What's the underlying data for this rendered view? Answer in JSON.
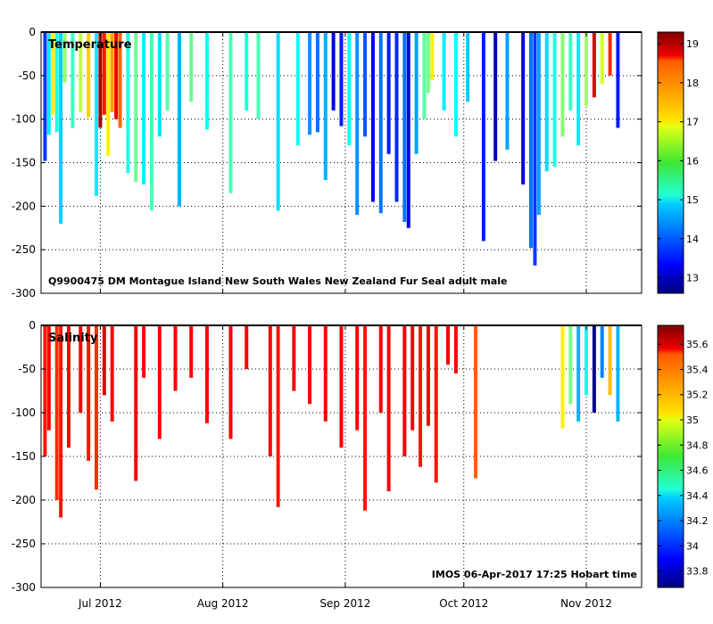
{
  "chart_data": [
    {
      "type": "bar",
      "title": "Temperature",
      "annotation": "Q9900475 DM Montague Island New South Wales New Zealand Fur Seal adult male",
      "xlabel": "",
      "ylabel": "",
      "ylim": [
        -300,
        0
      ],
      "y_ticks": [
        "0",
        "-50",
        "-100",
        "-150",
        "-200",
        "-250",
        "-300"
      ],
      "colorbar": {
        "range": [
          12.6,
          19.3
        ],
        "ticks": [
          "13",
          "14",
          "15",
          "16",
          "17",
          "18",
          "19"
        ]
      },
      "profiles": [
        {
          "day": 1,
          "depth": 148,
          "value": 13.8
        },
        {
          "day": 2,
          "depth": 118,
          "value": 15.0
        },
        {
          "day": 3,
          "depth": 95,
          "value": 16.9
        },
        {
          "day": 4,
          "depth": 115,
          "value": 15.3
        },
        {
          "day": 5,
          "depth": 220,
          "value": 14.8
        },
        {
          "day": 6,
          "depth": 58,
          "value": 16.1
        },
        {
          "day": 8,
          "depth": 110,
          "value": 15.5
        },
        {
          "day": 10,
          "depth": 92,
          "value": 16.4
        },
        {
          "day": 12,
          "depth": 98,
          "value": 17.1
        },
        {
          "day": 14,
          "depth": 188,
          "value": 15.0
        },
        {
          "day": 15,
          "depth": 110,
          "value": 19.0
        },
        {
          "day": 16,
          "depth": 95,
          "value": 18.3
        },
        {
          "day": 17,
          "depth": 142,
          "value": 16.9
        },
        {
          "day": 18,
          "depth": 92,
          "value": 17.4
        },
        {
          "day": 19,
          "depth": 100,
          "value": 18.6
        },
        {
          "day": 20,
          "depth": 110,
          "value": 17.8
        },
        {
          "day": 22,
          "depth": 162,
          "value": 15.3
        },
        {
          "day": 24,
          "depth": 172,
          "value": 15.8
        },
        {
          "day": 26,
          "depth": 175,
          "value": 15.0
        },
        {
          "day": 28,
          "depth": 205,
          "value": 15.6
        },
        {
          "day": 30,
          "depth": 120,
          "value": 14.9
        },
        {
          "day": 32,
          "depth": 90,
          "value": 15.7
        },
        {
          "day": 35,
          "depth": 200,
          "value": 14.6
        },
        {
          "day": 38,
          "depth": 80,
          "value": 15.8
        },
        {
          "day": 42,
          "depth": 112,
          "value": 15.2
        },
        {
          "day": 48,
          "depth": 185,
          "value": 15.6
        },
        {
          "day": 52,
          "depth": 90,
          "value": 15.3
        },
        {
          "day": 55,
          "depth": 100,
          "value": 15.6
        },
        {
          "day": 60,
          "depth": 205,
          "value": 14.9
        },
        {
          "day": 65,
          "depth": 130,
          "value": 15.2
        },
        {
          "day": 68,
          "depth": 118,
          "value": 14.4
        },
        {
          "day": 70,
          "depth": 115,
          "value": 14.2
        },
        {
          "day": 72,
          "depth": 170,
          "value": 14.6
        },
        {
          "day": 74,
          "depth": 90,
          "value": 13.3
        },
        {
          "day": 76,
          "depth": 108,
          "value": 13.6
        },
        {
          "day": 78,
          "depth": 130,
          "value": 15.2
        },
        {
          "day": 80,
          "depth": 210,
          "value": 14.4
        },
        {
          "day": 82,
          "depth": 120,
          "value": 14.0
        },
        {
          "day": 84,
          "depth": 195,
          "value": 13.4
        },
        {
          "day": 86,
          "depth": 208,
          "value": 14.2
        },
        {
          "day": 88,
          "depth": 140,
          "value": 13.6
        },
        {
          "day": 90,
          "depth": 195,
          "value": 13.7
        },
        {
          "day": 92,
          "depth": 218,
          "value": 14.2
        },
        {
          "day": 93,
          "depth": 225,
          "value": 13.2
        },
        {
          "day": 95,
          "depth": 140,
          "value": 14.5
        },
        {
          "day": 97,
          "depth": 100,
          "value": 15.7
        },
        {
          "day": 98,
          "depth": 70,
          "value": 15.9
        },
        {
          "day": 99,
          "depth": 55,
          "value": 16.9
        },
        {
          "day": 102,
          "depth": 90,
          "value": 15.0
        },
        {
          "day": 105,
          "depth": 120,
          "value": 15.1
        },
        {
          "day": 108,
          "depth": 80,
          "value": 14.8
        },
        {
          "day": 112,
          "depth": 240,
          "value": 13.6
        },
        {
          "day": 115,
          "depth": 148,
          "value": 13.0
        },
        {
          "day": 118,
          "depth": 135,
          "value": 14.5
        },
        {
          "day": 122,
          "depth": 175,
          "value": 13.3
        },
        {
          "day": 124,
          "depth": 248,
          "value": 14.2
        },
        {
          "day": 125,
          "depth": 268,
          "value": 13.8
        },
        {
          "day": 126,
          "depth": 210,
          "value": 14.5
        },
        {
          "day": 128,
          "depth": 160,
          "value": 14.9
        },
        {
          "day": 130,
          "depth": 155,
          "value": 15.3
        },
        {
          "day": 132,
          "depth": 120,
          "value": 16.0
        },
        {
          "day": 134,
          "depth": 90,
          "value": 15.5
        },
        {
          "day": 136,
          "depth": 130,
          "value": 15.0
        },
        {
          "day": 138,
          "depth": 85,
          "value": 16.2
        },
        {
          "day": 140,
          "depth": 75,
          "value": 18.7
        },
        {
          "day": 142,
          "depth": 60,
          "value": 16.5
        },
        {
          "day": 144,
          "depth": 50,
          "value": 18.2
        },
        {
          "day": 146,
          "depth": 110,
          "value": 13.6
        }
      ]
    },
    {
      "type": "bar",
      "title": "Salinity",
      "annotation": "IMOS 06-Apr-2017 17:25 Hobart time",
      "xlabel": "",
      "ylabel": "",
      "ylim": [
        -300,
        0
      ],
      "y_ticks": [
        "0",
        "-50",
        "-100",
        "-150",
        "-200",
        "-250",
        "-300"
      ],
      "x_ticks": [
        "Jul 2012",
        "Aug 2012",
        "Sep 2012",
        "Oct 2012",
        "Nov 2012"
      ],
      "colorbar": {
        "range": [
          33.67,
          35.75
        ],
        "ticks": [
          "33.8",
          "34",
          "34.2",
          "34.4",
          "34.6",
          "34.8",
          "35",
          "35.2",
          "35.4",
          "35.6"
        ]
      },
      "profiles": [
        {
          "day": 1,
          "depth": 150,
          "value": 35.45
        },
        {
          "day": 2,
          "depth": 120,
          "value": 35.5
        },
        {
          "day": 4,
          "depth": 200,
          "value": 35.4
        },
        {
          "day": 5,
          "depth": 220,
          "value": 35.45
        },
        {
          "day": 7,
          "depth": 140,
          "value": 35.5
        },
        {
          "day": 10,
          "depth": 100,
          "value": 35.5
        },
        {
          "day": 12,
          "depth": 155,
          "value": 35.45
        },
        {
          "day": 14,
          "depth": 188,
          "value": 35.4
        },
        {
          "day": 16,
          "depth": 80,
          "value": 35.55
        },
        {
          "day": 18,
          "depth": 110,
          "value": 35.5
        },
        {
          "day": 24,
          "depth": 178,
          "value": 35.5
        },
        {
          "day": 26,
          "depth": 60,
          "value": 35.5
        },
        {
          "day": 30,
          "depth": 130,
          "value": 35.5
        },
        {
          "day": 34,
          "depth": 75,
          "value": 35.5
        },
        {
          "day": 38,
          "depth": 60,
          "value": 35.5
        },
        {
          "day": 42,
          "depth": 112,
          "value": 35.5
        },
        {
          "day": 48,
          "depth": 130,
          "value": 35.5
        },
        {
          "day": 52,
          "depth": 50,
          "value": 35.5
        },
        {
          "day": 58,
          "depth": 150,
          "value": 35.5
        },
        {
          "day": 60,
          "depth": 208,
          "value": 35.45
        },
        {
          "day": 64,
          "depth": 75,
          "value": 35.5
        },
        {
          "day": 68,
          "depth": 90,
          "value": 35.5
        },
        {
          "day": 72,
          "depth": 110,
          "value": 35.5
        },
        {
          "day": 76,
          "depth": 140,
          "value": 35.5
        },
        {
          "day": 80,
          "depth": 120,
          "value": 35.5
        },
        {
          "day": 82,
          "depth": 212,
          "value": 35.45
        },
        {
          "day": 86,
          "depth": 100,
          "value": 35.5
        },
        {
          "day": 88,
          "depth": 190,
          "value": 35.5
        },
        {
          "day": 92,
          "depth": 150,
          "value": 35.5
        },
        {
          "day": 94,
          "depth": 120,
          "value": 35.5
        },
        {
          "day": 96,
          "depth": 162,
          "value": 35.45
        },
        {
          "day": 98,
          "depth": 115,
          "value": 35.5
        },
        {
          "day": 100,
          "depth": 180,
          "value": 35.45
        },
        {
          "day": 103,
          "depth": 45,
          "value": 35.5
        },
        {
          "day": 105,
          "depth": 55,
          "value": 35.5
        },
        {
          "day": 110,
          "depth": 175,
          "value": 35.3
        },
        {
          "day": 132,
          "depth": 118,
          "value": 35.0
        },
        {
          "day": 134,
          "depth": 90,
          "value": 34.7
        },
        {
          "day": 136,
          "depth": 110,
          "value": 34.3
        },
        {
          "day": 138,
          "depth": 80,
          "value": 34.5
        },
        {
          "day": 140,
          "depth": 100,
          "value": 33.7
        },
        {
          "day": 142,
          "depth": 60,
          "value": 34.2
        },
        {
          "day": 144,
          "depth": 80,
          "value": 35.1
        },
        {
          "day": 146,
          "depth": 110,
          "value": 34.3
        }
      ]
    }
  ]
}
